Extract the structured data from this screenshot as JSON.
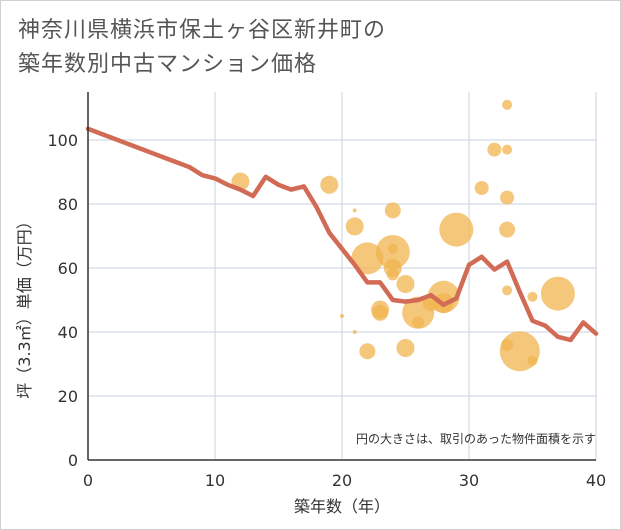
{
  "title": {
    "line1": "神奈川県横浜市保土ヶ谷区新井町の",
    "line2": "築年数別中古マンション価格"
  },
  "chart_data": {
    "type": "scatter",
    "title": "神奈川県横浜市保土ヶ谷区新井町の築年数別中古マンション価格",
    "xlabel": "築年数（年）",
    "ylabel": "坪（3.3㎡）単価（万円）",
    "xlim": [
      0,
      40
    ],
    "ylim": [
      0,
      115
    ],
    "x_ticks": [
      "0",
      "10",
      "20",
      "30",
      "40"
    ],
    "y_ticks": [
      "0",
      "20",
      "40",
      "60",
      "80",
      "100"
    ],
    "grid": true,
    "annotation": "円の大きさは、取引のあった物件面積を示す",
    "colors": {
      "bubble": "#f0b44f",
      "line": "#d26b55",
      "grid": "#c9d3e0"
    },
    "series": [
      {
        "type": "bubble",
        "points": [
          {
            "x": 12,
            "y": 87,
            "size": 9
          },
          {
            "x": 19,
            "y": 86,
            "size": 9
          },
          {
            "x": 20,
            "y": 45,
            "size": 2
          },
          {
            "x": 21,
            "y": 78,
            "size": 2
          },
          {
            "x": 21,
            "y": 73,
            "size": 9
          },
          {
            "x": 21,
            "y": 40,
            "size": 2
          },
          {
            "x": 22,
            "y": 63,
            "size": 16
          },
          {
            "x": 22,
            "y": 34,
            "size": 8
          },
          {
            "x": 23,
            "y": 47,
            "size": 9
          },
          {
            "x": 23,
            "y": 46,
            "size": 8
          },
          {
            "x": 24,
            "y": 78,
            "size": 8
          },
          {
            "x": 24,
            "y": 65,
            "size": 17
          },
          {
            "x": 24,
            "y": 66,
            "size": 5
          },
          {
            "x": 24,
            "y": 60,
            "size": 9
          },
          {
            "x": 24,
            "y": 58,
            "size": 6
          },
          {
            "x": 25,
            "y": 55,
            "size": 9
          },
          {
            "x": 25,
            "y": 35,
            "size": 9
          },
          {
            "x": 26,
            "y": 46,
            "size": 16
          },
          {
            "x": 26,
            "y": 43,
            "size": 6
          },
          {
            "x": 27,
            "y": 49,
            "size": 8
          },
          {
            "x": 28,
            "y": 51,
            "size": 16
          },
          {
            "x": 28,
            "y": 49,
            "size": 10
          },
          {
            "x": 29,
            "y": 72,
            "size": 17
          },
          {
            "x": 31,
            "y": 85,
            "size": 7
          },
          {
            "x": 32,
            "y": 97,
            "size": 7
          },
          {
            "x": 33,
            "y": 111,
            "size": 5
          },
          {
            "x": 33,
            "y": 97,
            "size": 5
          },
          {
            "x": 33,
            "y": 82,
            "size": 7
          },
          {
            "x": 33,
            "y": 72,
            "size": 8
          },
          {
            "x": 33,
            "y": 53,
            "size": 5
          },
          {
            "x": 33,
            "y": 36,
            "size": 6
          },
          {
            "x": 34,
            "y": 34,
            "size": 20
          },
          {
            "x": 35,
            "y": 31,
            "size": 5
          },
          {
            "x": 35,
            "y": 51,
            "size": 5
          },
          {
            "x": 37,
            "y": 52,
            "size": 17
          }
        ]
      },
      {
        "type": "line",
        "points": [
          [
            0,
            103.5
          ],
          [
            1,
            102
          ],
          [
            2,
            100.5
          ],
          [
            3,
            99
          ],
          [
            4,
            97.5
          ],
          [
            5,
            96
          ],
          [
            6,
            94.5
          ],
          [
            7,
            93
          ],
          [
            8,
            91.5
          ],
          [
            9,
            89
          ],
          [
            10,
            88
          ],
          [
            11,
            86
          ],
          [
            12,
            84.5
          ],
          [
            13,
            82.5
          ],
          [
            14,
            88.5
          ],
          [
            15,
            86
          ],
          [
            16,
            84.5
          ],
          [
            17,
            85.5
          ],
          [
            18,
            79
          ],
          [
            19,
            71
          ],
          [
            20,
            66
          ],
          [
            21,
            61
          ],
          [
            22,
            55.5
          ],
          [
            23,
            55.5
          ],
          [
            24,
            50
          ],
          [
            25,
            49.5
          ],
          [
            26,
            50
          ],
          [
            27,
            51.5
          ],
          [
            28,
            48.5
          ],
          [
            29,
            50.5
          ],
          [
            30,
            61
          ],
          [
            31,
            63.5
          ],
          [
            32,
            59.5
          ],
          [
            33,
            62
          ],
          [
            34,
            52.5
          ],
          [
            35,
            43.5
          ],
          [
            36,
            42
          ],
          [
            37,
            38.5
          ],
          [
            38,
            37.5
          ],
          [
            39,
            43
          ],
          [
            40,
            39.5
          ]
        ]
      }
    ]
  }
}
